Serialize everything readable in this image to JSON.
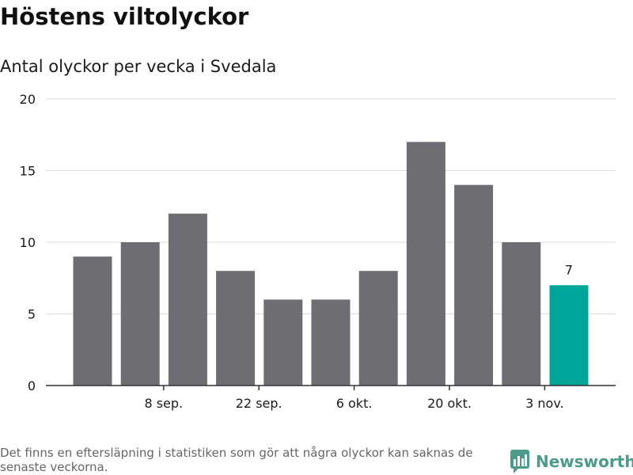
{
  "title": "Höstens viltolyckor",
  "subtitle": "Antal olyckor per vecka i Svedala",
  "footnote": "Det finns en eftersläpning i statistiken som gör att några olyckor kan saknas de senaste veckorna.",
  "brand": "Newsworthy",
  "colors": {
    "bar": "#6e6d72",
    "highlight": "#00a59a",
    "grid": "#dddddd",
    "axis": "#333333",
    "brand": "#4d9b8b"
  },
  "chart_data": {
    "type": "bar",
    "title": "Höstens viltolyckor",
    "subtitle": "Antal olyckor per vecka i Svedala",
    "values": [
      9,
      10,
      12,
      8,
      6,
      6,
      8,
      17,
      14,
      10,
      7
    ],
    "x_tick_labels": [
      {
        "label": "8 sep.",
        "bar_index": 1
      },
      {
        "label": "22 sep.",
        "bar_index": 3
      },
      {
        "label": "6 okt.",
        "bar_index": 5
      },
      {
        "label": "20 okt.",
        "bar_index": 7
      },
      {
        "label": "3 nov.",
        "bar_index": 9
      }
    ],
    "y_ticks": [
      0,
      5,
      10,
      15,
      20
    ],
    "ylim": [
      0,
      20
    ],
    "highlight_index": 10,
    "data_labels": [
      {
        "bar_index": 10,
        "text": "7"
      }
    ],
    "grid": true
  }
}
